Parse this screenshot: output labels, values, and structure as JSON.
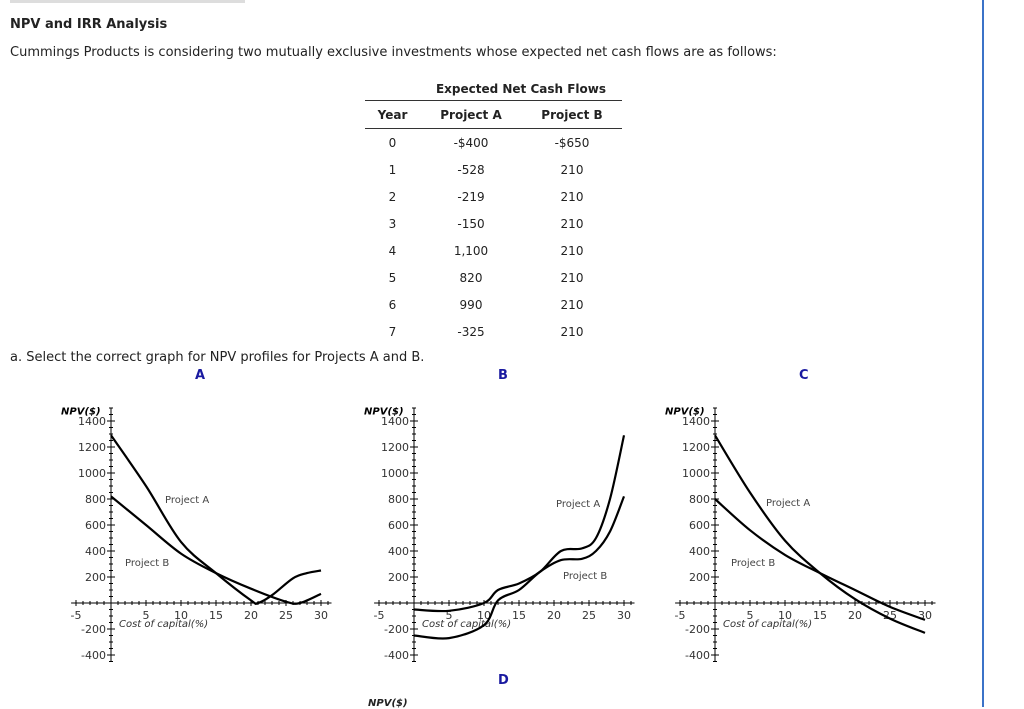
{
  "title": "NPV and IRR Analysis",
  "intro": "Cummings Products is considering two mutually exclusive investments whose expected net cash flows are as follows:",
  "table": {
    "group_header": "Expected Net Cash Flows",
    "headers": [
      "Year",
      "Project A",
      "Project B"
    ],
    "rows": [
      [
        "0",
        "-$400",
        "-$650"
      ],
      [
        "1",
        "-528",
        "210"
      ],
      [
        "2",
        "-219",
        "210"
      ],
      [
        "3",
        "-150",
        "210"
      ],
      [
        "4",
        "1,100",
        "210"
      ],
      [
        "5",
        "820",
        "210"
      ],
      [
        "6",
        "990",
        "210"
      ],
      [
        "7",
        "-325",
        "210"
      ]
    ]
  },
  "question": "a. Select the correct graph for NPV profiles for Projects A and B.",
  "option_labels": [
    "A",
    "B",
    "C",
    "D"
  ],
  "chart_data": [
    {
      "type": "line",
      "option": "A",
      "ylabel": "NPV($)",
      "xlabel": "Cost of capital(%)",
      "xlim": [
        -5,
        30
      ],
      "ylim": [
        -400,
        1400
      ],
      "xticks": [
        "-5",
        "5",
        "10",
        "15",
        "20",
        "25",
        "30"
      ],
      "yticks": [
        "1400",
        "1200",
        "1000",
        "800",
        "600",
        "400",
        "200",
        "-200",
        "-400"
      ],
      "series": [
        {
          "name": "Project A",
          "x": [
            0,
            5,
            10,
            15,
            20,
            21,
            23,
            26,
            28,
            30
          ],
          "y": [
            1290,
            900,
            470,
            230,
            20,
            0,
            60,
            190,
            230,
            250
          ]
        },
        {
          "name": "Project B",
          "x": [
            0,
            5,
            10,
            15,
            20,
            25,
            27,
            30
          ],
          "y": [
            820,
            600,
            380,
            230,
            110,
            10,
            0,
            70
          ]
        }
      ]
    },
    {
      "type": "line",
      "option": "B",
      "ylabel": "NPV($)",
      "xlabel": "Cost of capital(%)",
      "xlim": [
        -5,
        30
      ],
      "ylim": [
        -400,
        1400
      ],
      "xticks": [
        "-5",
        "5",
        "10",
        "15",
        "20",
        "25",
        "30"
      ],
      "yticks": [
        "1400",
        "1200",
        "1000",
        "800",
        "600",
        "400",
        "200",
        "-200",
        "-400"
      ],
      "series": [
        {
          "name": "Project A",
          "x": [
            0,
            5,
            10,
            12,
            15,
            18,
            21,
            24,
            26,
            28,
            30
          ],
          "y": [
            -50,
            -60,
            0,
            100,
            150,
            240,
            400,
            420,
            500,
            800,
            1290
          ]
        },
        {
          "name": "Project B",
          "x": [
            0,
            5,
            10,
            12,
            15,
            18,
            21,
            24,
            26,
            28,
            30
          ],
          "y": [
            -250,
            -270,
            -170,
            20,
            100,
            240,
            330,
            340,
            400,
            550,
            820
          ]
        }
      ]
    },
    {
      "type": "line",
      "option": "C",
      "ylabel": "NPV($)",
      "xlabel": "Cost of capital(%)",
      "xlim": [
        -5,
        30
      ],
      "ylim": [
        -400,
        1400
      ],
      "xticks": [
        "-5",
        "5",
        "10",
        "15",
        "20",
        "25",
        "30"
      ],
      "yticks": [
        "1400",
        "1200",
        "1000",
        "800",
        "600",
        "400",
        "200",
        "-200",
        "-400"
      ],
      "series": [
        {
          "name": "Project A",
          "x": [
            0,
            5,
            10,
            15,
            20,
            25,
            30
          ],
          "y": [
            1290,
            850,
            480,
            230,
            30,
            -120,
            -230
          ]
        },
        {
          "name": "Project B",
          "x": [
            0,
            5,
            10,
            15,
            20,
            25,
            30
          ],
          "y": [
            800,
            560,
            370,
            230,
            100,
            -30,
            -130
          ]
        }
      ]
    }
  ],
  "partial_chart_d_ylabel": "NPV($)"
}
